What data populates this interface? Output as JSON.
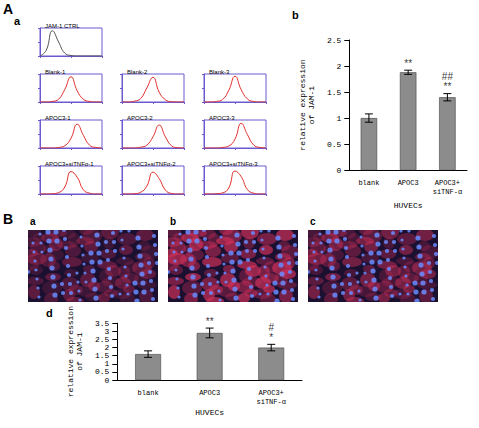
{
  "panel_letters": [
    "A",
    "a",
    "b",
    "B",
    "a",
    "b",
    "c",
    "d"
  ],
  "chart_data": [
    {
      "type": "line",
      "title": "JAM-1 CTRL",
      "x": [
        0,
        10,
        20,
        30,
        40,
        50,
        60,
        70,
        80,
        90,
        100
      ],
      "values": [
        0,
        20,
        90,
        50,
        10,
        2,
        0,
        0,
        0,
        0,
        0
      ],
      "color": "#555555",
      "xlim": [
        0,
        100
      ],
      "ylim": [
        0,
        100
      ],
      "xticks": [
        0,
        50,
        100
      ],
      "yticks": [
        0,
        50,
        100
      ],
      "tick_labels": false,
      "grid": false
    },
    {
      "type": "line",
      "title": "Blank-1",
      "x": [
        0,
        10,
        20,
        30,
        40,
        50,
        60,
        70,
        80,
        90,
        100
      ],
      "values": [
        0,
        0,
        2,
        10,
        45,
        90,
        40,
        10,
        2,
        0,
        0
      ],
      "color": "#e0302c",
      "xlim": [
        0,
        100
      ],
      "ylim": [
        0,
        100
      ],
      "xticks": [
        0,
        50,
        100
      ],
      "yticks": [
        0,
        50,
        100
      ],
      "tick_labels": false,
      "grid": false
    },
    {
      "type": "line",
      "title": "Blank-2",
      "x": [
        0,
        10,
        20,
        30,
        40,
        50,
        60,
        70,
        80,
        90,
        100
      ],
      "values": [
        0,
        0,
        3,
        12,
        50,
        88,
        35,
        8,
        1,
        0,
        0
      ],
      "color": "#e0302c",
      "xlim": [
        0,
        100
      ],
      "ylim": [
        0,
        100
      ],
      "xticks": [
        0,
        50,
        100
      ],
      "yticks": [
        0,
        50,
        100
      ],
      "tick_labels": false,
      "grid": false
    },
    {
      "type": "line",
      "title": "Blank-3",
      "x": [
        0,
        10,
        20,
        30,
        40,
        50,
        60,
        70,
        80,
        90,
        100
      ],
      "values": [
        0,
        0,
        2,
        9,
        42,
        92,
        44,
        11,
        2,
        0,
        0
      ],
      "color": "#e0302c",
      "xlim": [
        0,
        100
      ],
      "ylim": [
        0,
        100
      ],
      "xticks": [
        0,
        50,
        100
      ],
      "yticks": [
        0,
        50,
        100
      ],
      "tick_labels": false,
      "grid": false
    },
    {
      "type": "line",
      "title": "APOC3-1",
      "x": [
        0,
        10,
        20,
        30,
        40,
        50,
        60,
        70,
        80,
        90,
        100
      ],
      "values": [
        0,
        0,
        0,
        2,
        8,
        35,
        85,
        45,
        10,
        2,
        0
      ],
      "color": "#e0302c",
      "xlim": [
        0,
        100
      ],
      "ylim": [
        0,
        100
      ],
      "xticks": [
        0,
        50,
        100
      ],
      "yticks": [
        0,
        50,
        100
      ],
      "tick_labels": false,
      "grid": false
    },
    {
      "type": "line",
      "title": "APOC3-2",
      "x": [
        0,
        10,
        20,
        30,
        40,
        50,
        60,
        70,
        80,
        90,
        100
      ],
      "values": [
        0,
        0,
        0,
        3,
        10,
        40,
        82,
        40,
        8,
        1,
        0
      ],
      "color": "#e0302c",
      "xlim": [
        0,
        100
      ],
      "ylim": [
        0,
        100
      ],
      "xticks": [
        0,
        50,
        100
      ],
      "yticks": [
        0,
        50,
        100
      ],
      "tick_labels": false,
      "grid": false
    },
    {
      "type": "line",
      "title": "APOC3-3",
      "x": [
        0,
        10,
        20,
        30,
        40,
        50,
        60,
        70,
        80,
        90,
        100
      ],
      "values": [
        0,
        0,
        0,
        2,
        7,
        32,
        88,
        48,
        11,
        2,
        0
      ],
      "color": "#e0302c",
      "xlim": [
        0,
        100
      ],
      "ylim": [
        0,
        100
      ],
      "xticks": [
        0,
        50,
        100
      ],
      "yticks": [
        0,
        50,
        100
      ],
      "tick_labels": false,
      "grid": false
    },
    {
      "type": "line",
      "title": "APOC3+siTNFα-1",
      "x": [
        0,
        10,
        20,
        30,
        40,
        50,
        60,
        70,
        80,
        90,
        100
      ],
      "values": [
        0,
        0,
        1,
        5,
        25,
        80,
        60,
        15,
        3,
        0,
        0
      ],
      "color": "#e0302c",
      "xlim": [
        0,
        100
      ],
      "ylim": [
        0,
        100
      ],
      "xticks": [
        0,
        50,
        100
      ],
      "yticks": [
        0,
        50,
        100
      ],
      "tick_labels": false,
      "grid": false
    },
    {
      "type": "line",
      "title": "APOC3+siTNFα-2",
      "x": [
        0,
        10,
        20,
        30,
        40,
        50,
        60,
        70,
        80,
        90,
        100
      ],
      "values": [
        0,
        0,
        1,
        6,
        28,
        78,
        55,
        14,
        2,
        0,
        0
      ],
      "color": "#e0302c",
      "xlim": [
        0,
        100
      ],
      "ylim": [
        0,
        100
      ],
      "xticks": [
        0,
        50,
        100
      ],
      "yticks": [
        0,
        50,
        100
      ],
      "tick_labels": false,
      "grid": false
    },
    {
      "type": "line",
      "title": "APOC3+siTNFα-3",
      "x": [
        0,
        10,
        20,
        30,
        40,
        50,
        60,
        70,
        80,
        90,
        100
      ],
      "values": [
        0,
        0,
        1,
        4,
        22,
        82,
        62,
        16,
        3,
        0,
        0
      ],
      "color": "#e0302c",
      "xlim": [
        0,
        100
      ],
      "ylim": [
        0,
        100
      ],
      "xticks": [
        0,
        50,
        100
      ],
      "yticks": [
        0,
        50,
        100
      ],
      "tick_labels": false,
      "grid": false
    },
    {
      "type": "bar",
      "categories": [
        "blank",
        "APOC3",
        "APOC3+siTNF-α"
      ],
      "values": [
        1.0,
        1.88,
        1.4
      ],
      "errors": [
        0.08,
        0.04,
        0.07
      ],
      "color": "#8c8c8c",
      "ylim": [
        0,
        2.5
      ],
      "yticks": [
        0,
        0.5,
        1,
        1.5,
        2,
        2.5
      ],
      "ylabel": "relative expression of JAM-1",
      "xlabel": "HUVECs",
      "grid": false,
      "annotations": [
        {
          "category": "APOC3",
          "text": "**"
        },
        {
          "category": "APOC3+siTNF-α",
          "text": "##"
        },
        {
          "category": "APOC3+siTNF-α",
          "text": "**"
        }
      ]
    },
    {
      "type": "bar",
      "categories": [
        "blank",
        "APOC3",
        "APOC3+siTNF-α"
      ],
      "values": [
        1.6,
        2.9,
        2.0
      ],
      "errors": [
        0.2,
        0.3,
        0.2
      ],
      "color": "#8c8c8c",
      "ylim": [
        0,
        3.5
      ],
      "yticks": [
        0,
        0.5,
        1,
        1.5,
        2,
        2.5,
        3,
        3.5
      ],
      "ylabel": "relative expression of JAM-1",
      "xlabel": "HUVECs",
      "grid": false,
      "annotations": [
        {
          "category": "APOC3",
          "text": "**"
        },
        {
          "category": "APOC3+siTNF-α",
          "text": "#"
        },
        {
          "category": "APOC3+siTNF-α",
          "text": "*"
        }
      ]
    }
  ]
}
